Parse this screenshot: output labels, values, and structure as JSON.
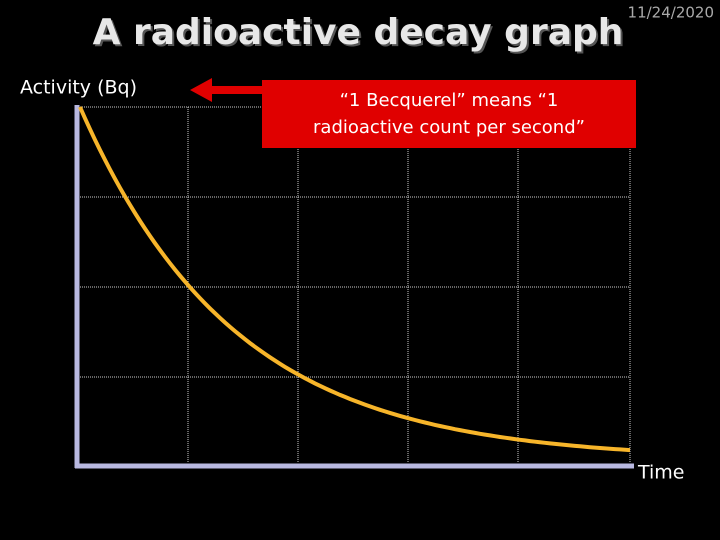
{
  "header": {
    "title": "A radioactive decay graph",
    "date": "11/24/2020"
  },
  "graph": {
    "y_label": "Activity (Bq)",
    "x_label": "Time"
  },
  "callout": {
    "lines": [
      "“1 Becquerel” means “1",
      "radioactive count per second”"
    ]
  }
}
